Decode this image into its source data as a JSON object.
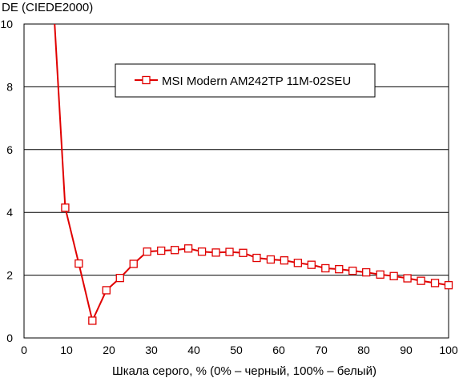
{
  "chart_data": {
    "type": "line",
    "ylabel": "DE (CIEDE2000)",
    "xlabel": "Шкала серого, % (0% – черный, 100% – белый)",
    "xlim": [
      0,
      100
    ],
    "ylim": [
      0,
      10
    ],
    "xticks": [
      0,
      10,
      20,
      30,
      40,
      50,
      60,
      70,
      80,
      90,
      100
    ],
    "yticks": [
      0,
      2,
      4,
      6,
      8,
      10
    ],
    "grid": "horizontal",
    "legend_position": "top-center",
    "series": [
      {
        "name": "MSI Modern AM242TP 11M-02SEU",
        "color": "#e00000",
        "marker": "open-square",
        "points": [
          [
            7.0,
            10.5
          ],
          [
            9.7,
            4.15
          ],
          [
            12.9,
            2.37
          ],
          [
            16.1,
            0.55
          ],
          [
            19.4,
            1.52
          ],
          [
            22.6,
            1.91
          ],
          [
            25.8,
            2.36
          ],
          [
            29.0,
            2.75
          ],
          [
            32.3,
            2.78
          ],
          [
            35.5,
            2.8
          ],
          [
            38.7,
            2.85
          ],
          [
            41.9,
            2.75
          ],
          [
            45.2,
            2.72
          ],
          [
            48.4,
            2.74
          ],
          [
            51.6,
            2.71
          ],
          [
            54.8,
            2.55
          ],
          [
            58.1,
            2.5
          ],
          [
            61.3,
            2.47
          ],
          [
            64.5,
            2.39
          ],
          [
            67.7,
            2.33
          ],
          [
            71.0,
            2.22
          ],
          [
            74.2,
            2.19
          ],
          [
            77.4,
            2.14
          ],
          [
            80.6,
            2.09
          ],
          [
            83.9,
            2.02
          ],
          [
            87.1,
            1.97
          ],
          [
            90.3,
            1.9
          ],
          [
            93.5,
            1.82
          ],
          [
            96.8,
            1.75
          ],
          [
            100.0,
            1.68
          ]
        ]
      }
    ]
  }
}
